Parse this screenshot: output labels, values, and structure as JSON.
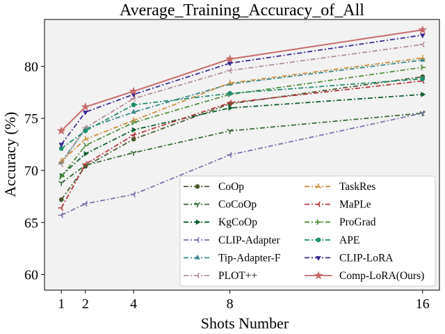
{
  "chart_data": {
    "type": "line",
    "title": "Average_Training_Accuracy_of_All",
    "xlabel": "Shots Number",
    "ylabel": "Accuracy (%)",
    "x": [
      1,
      2,
      4,
      8,
      16
    ],
    "xticks": [
      "1",
      "2",
      "4",
      "8",
      "16"
    ],
    "xlim": [
      0.3,
      16.7
    ],
    "ylim": [
      58.5,
      84.5
    ],
    "yticks": [
      60,
      65,
      70,
      75,
      80
    ],
    "ytick_labels": [
      "60",
      "65",
      "70",
      "75",
      "80"
    ],
    "background": "#f2f2f2",
    "grid": false,
    "legend_position": "lower-right",
    "series": [
      {
        "name": "CoOp",
        "color": "#4a5a2e",
        "dash": "dashdot",
        "marker": "circle",
        "values": [
          67.2,
          70.4,
          73.0,
          76.4,
          79.0
        ]
      },
      {
        "name": "CoCoOp",
        "color": "#356b33",
        "dash": "dashdot",
        "marker": "tri-down",
        "values": [
          68.8,
          70.5,
          71.7,
          73.8,
          75.5
        ]
      },
      {
        "name": "KgCoOp",
        "color": "#0d5e2e",
        "dash": "dashdot",
        "marker": "triangle-right",
        "values": [
          69.5,
          71.6,
          73.9,
          76.0,
          77.3
        ]
      },
      {
        "name": "CLIP-Adapter",
        "color": "#7b73ad",
        "dash": "dashdot",
        "marker": "tri-left",
        "values": [
          65.7,
          66.8,
          67.7,
          71.5,
          75.5
        ]
      },
      {
        "name": "Tip-Adapter-F",
        "color": "#3a8a8c",
        "dash": "dashdot",
        "marker": "triangle-up",
        "values": [
          70.8,
          74.0,
          75.6,
          78.3,
          80.6
        ]
      },
      {
        "name": "PLOT++",
        "color": "#b38c99",
        "dash": "dashdot",
        "marker": "tri-left",
        "values": [
          70.6,
          74.1,
          76.9,
          79.6,
          82.1
        ]
      },
      {
        "name": "TaskRes",
        "color": "#cc8e3a",
        "dash": "dashdot",
        "marker": "tri-up",
        "values": [
          70.9,
          73.0,
          74.8,
          78.4,
          80.8
        ]
      },
      {
        "name": "MaPLe",
        "color": "#b8343a",
        "dash": "dashdot",
        "marker": "tri-left",
        "values": [
          66.4,
          70.6,
          73.4,
          76.5,
          78.6
        ]
      },
      {
        "name": "ProGrad",
        "color": "#4f8f3c",
        "dash": "dashdot",
        "marker": "tri-right",
        "values": [
          69.4,
          72.4,
          74.6,
          77.3,
          79.9
        ]
      },
      {
        "name": "APE",
        "color": "#1e8c6a",
        "dash": "dashdot",
        "marker": "circle",
        "values": [
          72.1,
          73.8,
          76.3,
          77.4,
          78.8
        ]
      },
      {
        "name": "CLIP-LoRA",
        "color": "#3b2a92",
        "dash": "dashdot",
        "marker": "triangle-down",
        "values": [
          72.5,
          75.6,
          77.3,
          80.3,
          83.0
        ]
      },
      {
        "name": "Comp-LoRA(Ours)",
        "color": "#c86a6a",
        "dash": "solid",
        "marker": "star",
        "values": [
          73.8,
          76.1,
          77.6,
          80.7,
          83.5
        ]
      }
    ]
  }
}
